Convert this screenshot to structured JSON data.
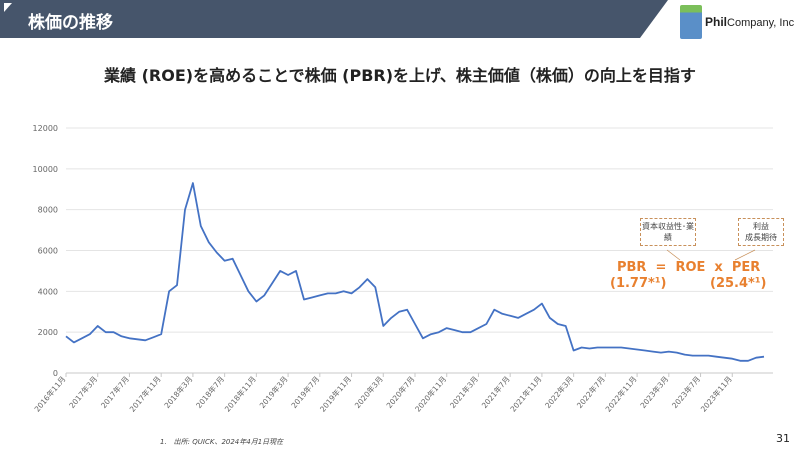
{
  "header": {
    "title": "株価の推移",
    "logo_text_bold": "Phil",
    "logo_text": "Company, Inc",
    "bar_color": "#46556b"
  },
  "subtitle": "業績 (ROE)を高めることで株価 (PBR)を上げ、株主価値（株価）の向上を目指す",
  "annotations": {
    "roe_note": "資本収益性･業績",
    "per_note_line1": "利益",
    "per_note_line2": "成長期待",
    "formula_line1": "PBR  =  ROE  x  PER",
    "pbr_value": "(1.77*¹)",
    "per_value": "(25.4*¹)",
    "accent_color": "#e8802f"
  },
  "footnote": "1.　出所: QUICK、2024年4月1日現在",
  "page_number": "31",
  "chart_data": {
    "type": "line",
    "title": "",
    "xlabel": "",
    "ylabel": "",
    "ylim": [
      0,
      12000
    ],
    "yticks": [
      "0",
      "2000",
      "4000",
      "6000",
      "8000",
      "10000",
      "12000"
    ],
    "grid": "horizontal",
    "line_color": "#4472c4",
    "xtick_labels": [
      "2016年11月",
      "2017年3月",
      "2017年7月",
      "2017年11月",
      "2018年3月",
      "2018年7月",
      "2018年11月",
      "2019年3月",
      "2019年7月",
      "2019年11月",
      "2020年3月",
      "2020年7月",
      "2020年11月",
      "2021年3月",
      "2021年7月",
      "2021年11月",
      "2022年3月",
      "2022年7月",
      "2022年11月",
      "2023年3月",
      "2023年7月",
      "2023年11月"
    ],
    "x_start": "2016-11",
    "x_end": "2024-03",
    "monthly_values": [
      1800,
      1500,
      1700,
      1900,
      2300,
      2000,
      2000,
      1800,
      1700,
      1650,
      1600,
      1750,
      1900,
      4000,
      4300,
      8000,
      9300,
      7200,
      6400,
      5900,
      5500,
      5600,
      4800,
      4000,
      3500,
      3800,
      4400,
      5000,
      4800,
      5000,
      3600,
      3700,
      3800,
      3900,
      3900,
      4000,
      3900,
      4200,
      4600,
      4200,
      2300,
      2700,
      3000,
      3100,
      2400,
      1700,
      1900,
      2000,
      2200,
      2100,
      2000,
      2000,
      2200,
      2400,
      3100,
      2900,
      2800,
      2700,
      2900,
      3100,
      3400,
      2700,
      2400,
      2300,
      1100,
      1250,
      1200,
      1250,
      1250,
      1250,
      1250,
      1200,
      1150,
      1100,
      1050,
      1000,
      1050,
      1000,
      900,
      850,
      850,
      850,
      800,
      750,
      700,
      600,
      600,
      750,
      800
    ]
  }
}
